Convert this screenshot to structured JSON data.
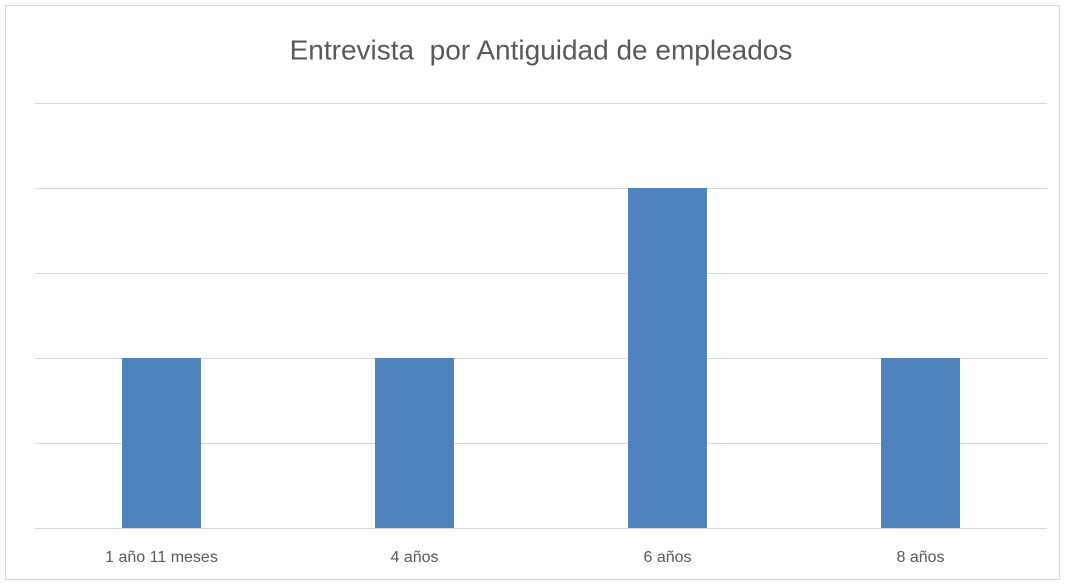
{
  "chart_data": {
    "type": "bar",
    "title": "Entrevista  por Antiguidad de empleados",
    "categories": [
      "1 año 11 meses",
      "4 años",
      "6 años",
      "8 años"
    ],
    "values": [
      2,
      2,
      4,
      2
    ],
    "color": "#4f81bd",
    "ylim": [
      0,
      5
    ],
    "yticks": [
      0,
      1,
      2,
      3,
      4,
      5
    ],
    "grid": true
  }
}
